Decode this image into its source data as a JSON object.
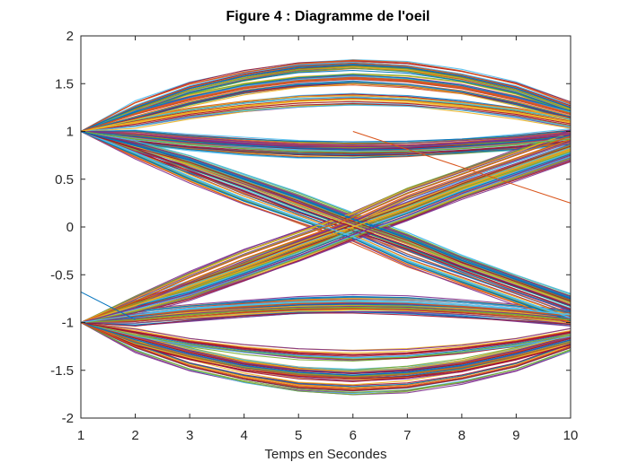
{
  "chart_data": {
    "type": "line",
    "title": "Figure 4 : Diagramme de l'oeil",
    "xlabel": "Temps en Secondes",
    "ylabel": "",
    "xlim": [
      1,
      10
    ],
    "ylim": [
      -2,
      2
    ],
    "xticks": [
      "1",
      "2",
      "3",
      "4",
      "5",
      "6",
      "7",
      "8",
      "9",
      "10"
    ],
    "yticks": [
      "-2",
      "-1.5",
      "-1",
      "-0.5",
      "0",
      "0.5",
      "1",
      "1.5",
      "2"
    ],
    "grid": false,
    "legend": "none",
    "x": [
      1,
      2,
      3,
      4,
      5,
      6,
      7,
      8,
      9,
      10
    ],
    "series_description_values": {
      "eye_upper_outer_peak": 1.7,
      "eye_lower_outer_peak": -1.7,
      "eye_inner_opening_upper": 0.78,
      "eye_inner_opening_lower": -0.78,
      "crossing_level": 0
    },
    "series": [
      {
        "values": [
          1,
          1.25,
          1.45,
          1.58,
          1.67,
          1.7,
          1.67,
          1.58,
          1.45,
          1.25
        ]
      },
      {
        "values": [
          1,
          1.18,
          1.33,
          1.45,
          1.52,
          1.55,
          1.52,
          1.45,
          1.33,
          1.18
        ]
      },
      {
        "values": [
          1,
          1.1,
          1.2,
          1.27,
          1.32,
          1.34,
          1.32,
          1.27,
          1.2,
          1.1
        ]
      },
      {
        "values": [
          1,
          0.97,
          0.92,
          0.88,
          0.85,
          0.84,
          0.85,
          0.88,
          0.92,
          0.97
        ]
      },
      {
        "values": [
          1,
          0.92,
          0.86,
          0.82,
          0.79,
          0.78,
          0.79,
          0.82,
          0.86,
          0.92
        ]
      },
      {
        "values": [
          1,
          0.78,
          0.53,
          0.3,
          0.1,
          -0.1,
          -0.35,
          -0.55,
          -0.75,
          -0.95
        ]
      },
      {
        "values": [
          1,
          0.82,
          0.62,
          0.42,
          0.2,
          0,
          -0.2,
          -0.42,
          -0.62,
          -0.82
        ]
      },
      {
        "values": [
          1,
          0.85,
          0.7,
          0.5,
          0.3,
          0.08,
          -0.12,
          -0.35,
          -0.55,
          -0.75
        ]
      },
      {
        "values": [
          -1,
          -0.78,
          -0.53,
          -0.3,
          -0.1,
          0.1,
          0.35,
          0.55,
          0.75,
          0.95
        ]
      },
      {
        "values": [
          -1,
          -0.82,
          -0.62,
          -0.42,
          -0.2,
          0,
          0.2,
          0.42,
          0.62,
          0.82
        ]
      },
      {
        "values": [
          -1,
          -0.85,
          -0.7,
          -0.5,
          -0.3,
          -0.08,
          0.12,
          0.35,
          0.55,
          0.75
        ]
      },
      {
        "values": [
          -1,
          -0.97,
          -0.92,
          -0.88,
          -0.85,
          -0.84,
          -0.85,
          -0.88,
          -0.92,
          -0.97
        ]
      },
      {
        "values": [
          -1,
          -0.92,
          -0.86,
          -0.82,
          -0.79,
          -0.78,
          -0.79,
          -0.82,
          -0.86,
          -0.92
        ]
      },
      {
        "values": [
          -1,
          -1.1,
          -1.2,
          -1.27,
          -1.32,
          -1.34,
          -1.32,
          -1.27,
          -1.2,
          -1.1
        ]
      },
      {
        "values": [
          -1,
          -1.18,
          -1.33,
          -1.45,
          -1.52,
          -1.55,
          -1.52,
          -1.45,
          -1.33,
          -1.18
        ]
      },
      {
        "values": [
          -1,
          -1.25,
          -1.45,
          -1.58,
          -1.67,
          -1.7,
          -1.67,
          -1.58,
          -1.45,
          -1.25
        ]
      }
    ],
    "stray_lines": [
      {
        "x": [
          1,
          2
        ],
        "y": [
          -0.68,
          -0.97
        ],
        "color": "#0072bd"
      },
      {
        "x": [
          6,
          10
        ],
        "y": [
          1.0,
          0.25
        ],
        "color": "#d95319"
      }
    ],
    "colors": [
      "#0072bd",
      "#d95319",
      "#edb120",
      "#7e2f8e",
      "#77ac30",
      "#4dbeee",
      "#a2142f"
    ]
  }
}
